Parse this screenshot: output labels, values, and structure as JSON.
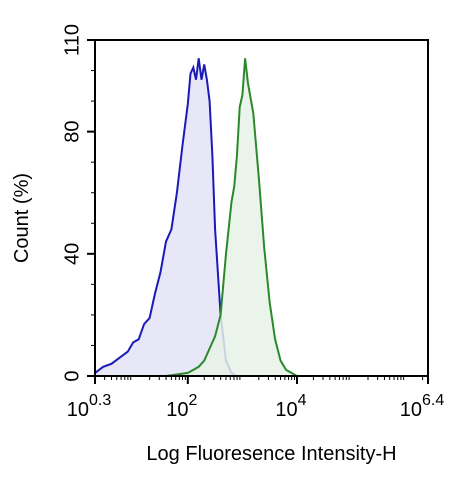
{
  "chart_data": {
    "type": "area",
    "xlabel": "Log Fluoresence Intensity-H",
    "ylabel": "Count  (%)",
    "x_scale": "log10",
    "xlim_exponent": [
      0.3,
      6.4
    ],
    "ylim": [
      0,
      110
    ],
    "x_ticks": [
      {
        "base": "10",
        "exp": "0.3"
      },
      {
        "base": "10",
        "exp": "2"
      },
      {
        "base": "10",
        "exp": "4"
      },
      {
        "base": "10",
        "exp": "6.4"
      }
    ],
    "x_tick_exponents": [
      0.3,
      2,
      4,
      6.4
    ],
    "y_ticks": [
      "0",
      "40",
      "80",
      "110"
    ],
    "y_tick_values": [
      0,
      40,
      80,
      110
    ],
    "grid": false,
    "legend": "none",
    "series": [
      {
        "color": "#1a1ab8",
        "fill": "#e3e3f7",
        "x_log": [
          0.3,
          0.45,
          0.6,
          0.75,
          0.9,
          1.0,
          1.1,
          1.2,
          1.3,
          1.4,
          1.5,
          1.6,
          1.7,
          1.8,
          1.9,
          2.0,
          2.05,
          2.1,
          2.15,
          2.2,
          2.25,
          2.3,
          2.35,
          2.4,
          2.45,
          2.5,
          2.6,
          2.7,
          2.8,
          2.9
        ],
        "y": [
          1,
          3,
          4,
          6,
          8,
          11,
          12,
          17,
          19,
          27,
          34,
          44,
          48,
          60,
          75,
          89,
          99,
          101,
          97,
          104,
          97,
          102,
          97,
          90,
          72,
          48,
          20,
          5,
          1,
          0
        ]
      },
      {
        "color": "#2a8a2a",
        "fill": "#e6f2e6",
        "x_log": [
          1.6,
          2.0,
          2.1,
          2.2,
          2.3,
          2.4,
          2.5,
          2.6,
          2.7,
          2.8,
          2.85,
          2.9,
          2.95,
          3.0,
          3.05,
          3.1,
          3.2,
          3.3,
          3.4,
          3.5,
          3.6,
          3.7,
          3.8,
          3.9,
          4.0
        ],
        "y": [
          0,
          1,
          2,
          3,
          5,
          9,
          13,
          20,
          40,
          57,
          62,
          72,
          88,
          92,
          104,
          96,
          86,
          65,
          42,
          24,
          12,
          5,
          2,
          1,
          0
        ]
      }
    ]
  }
}
